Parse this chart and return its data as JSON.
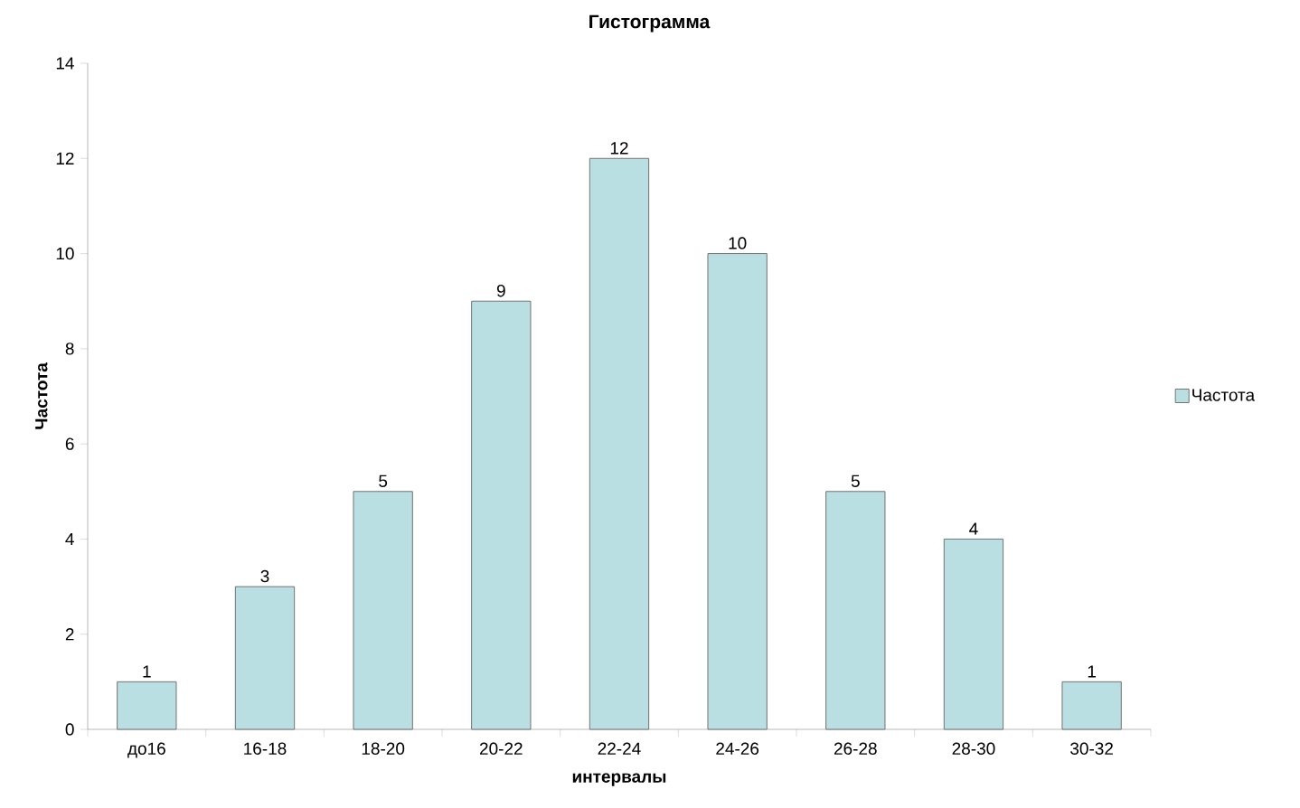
{
  "chart_data": {
    "type": "bar",
    "title": "Гистограмма",
    "xlabel": "интервалы",
    "ylabel": "Частота",
    "categories": [
      "до16",
      "16-18",
      "18-20",
      "20-22",
      "22-24",
      "24-26",
      "26-28",
      "28-30",
      "30-32"
    ],
    "series": [
      {
        "name": "Частота",
        "color": "#b9dfe3",
        "values": [
          1,
          3,
          5,
          9,
          12,
          10,
          5,
          4,
          1
        ]
      }
    ],
    "ylim": [
      0,
      14
    ],
    "yticks": [
      0,
      2,
      4,
      6,
      8,
      10,
      12,
      14
    ],
    "data_labels": true,
    "legend": "right",
    "grid": false
  }
}
